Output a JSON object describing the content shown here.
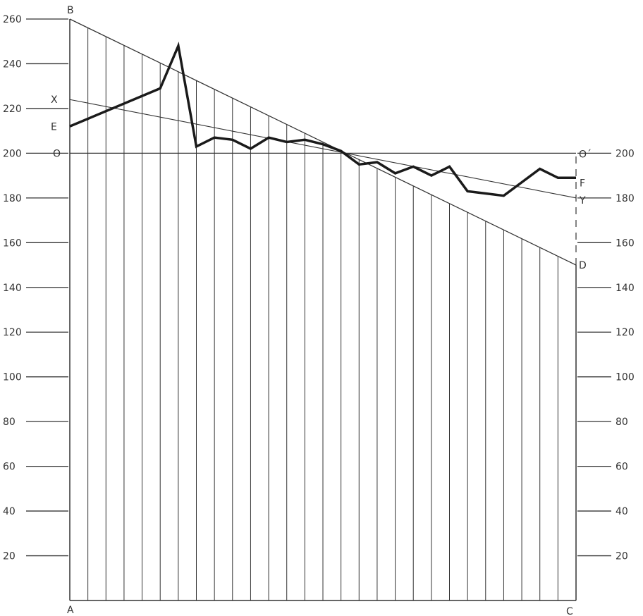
{
  "chart_data": {
    "type": "line",
    "title": "",
    "xlabel": "",
    "ylabel": "",
    "ylim": [
      0,
      260
    ],
    "grid": "vertical lines",
    "left_ticks": [
      "20",
      "40",
      "60",
      "80",
      "100",
      "120",
      "140",
      "160",
      "180",
      "200",
      "220",
      "240",
      "260"
    ],
    "right_ticks": [
      "20",
      "40",
      "60",
      "80",
      "100",
      "120",
      "140",
      "160",
      "180",
      "200"
    ],
    "point_labels": {
      "A": "A",
      "B": "B",
      "C": "C",
      "D": "D",
      "E": "E",
      "F": "F",
      "X": "X",
      "Y": "Y",
      "O": "O",
      "O_prime": "O´"
    },
    "x_range": [
      0,
      28
    ],
    "boundary_line_BD": {
      "from": [
        0,
        260
      ],
      "to": [
        28,
        150
      ]
    },
    "line_XY": {
      "from": [
        0,
        224
      ],
      "to": [
        28,
        180
      ]
    },
    "baseline_OO": {
      "y": 200
    },
    "series": [
      {
        "x": [
          0,
          5,
          6,
          7,
          8,
          9,
          10,
          11,
          12,
          13,
          14,
          15,
          16,
          17,
          18,
          19,
          20,
          21,
          22,
          23,
          24,
          25,
          26,
          27,
          28
        ],
        "values": [
          212,
          229,
          248,
          203,
          207,
          206,
          202,
          207,
          205,
          206,
          204,
          201,
          195,
          196,
          191,
          194,
          190,
          194,
          183,
          182,
          181,
          187,
          193,
          189,
          189
        ]
      }
    ]
  },
  "colors": {
    "line": "#1a1a1a",
    "grid": "#333333",
    "text": "#333333"
  }
}
